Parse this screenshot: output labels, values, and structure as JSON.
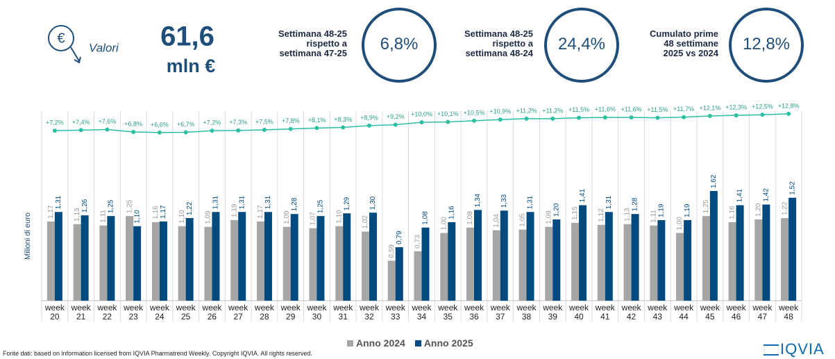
{
  "header": {
    "label": "Valori",
    "total": "61,6",
    "unit": "mln €",
    "kpis": [
      {
        "lines": [
          "Settimana 48-25",
          "rispetto a",
          "settimana 47-25"
        ],
        "value": "6,8%"
      },
      {
        "lines": [
          "Settimana 48-25",
          "rispetto a",
          "settimana 48-24"
        ],
        "value": "24,4%"
      },
      {
        "lines": [
          "Cumulato prime",
          "48 settimane",
          "2025 vs 2024"
        ],
        "value": "12,8%"
      }
    ]
  },
  "chart_data": {
    "type": "bar",
    "y_label": "Milioni di euro",
    "categories": [
      "week 20",
      "week 21",
      "week 22",
      "week 23",
      "week 24",
      "week 25",
      "week 26",
      "week 27",
      "week 28",
      "week 29",
      "week 30",
      "week 31",
      "week 32",
      "week 33",
      "week 34",
      "week 35",
      "week 36",
      "week 37",
      "week 38",
      "week 39",
      "week 40",
      "week 41",
      "week 42",
      "week 43",
      "week 44",
      "week 45",
      "week 46",
      "week 47",
      "week 48"
    ],
    "ylim": [
      0,
      2.8
    ],
    "y2lim": [
      -49,
      13.7
    ],
    "legend": "bottom",
    "series": [
      {
        "name": "Anno 2024",
        "color": "#a6a6a6",
        "values": [
          1.17,
          1.13,
          1.11,
          1.25,
          1.16,
          1.1,
          1.09,
          1.19,
          1.17,
          1.09,
          1.07,
          1.1,
          1.02,
          0.59,
          0.73,
          1.0,
          1.08,
          1.04,
          1.05,
          1.09,
          1.15,
          1.12,
          1.13,
          1.11,
          1.0,
          1.25,
          1.16,
          1.2,
          1.22
        ],
        "value_labels": [
          "1,17",
          "1,13",
          "1,11",
          "1,25",
          "1,16",
          "1,10",
          "1,09",
          "1,19",
          "1,17",
          "1,09",
          "1,07",
          "1,10",
          "1,02",
          "0,59",
          "0,73",
          "1,00",
          "1,08",
          "1,04",
          "1,05",
          "1,09",
          "1,15",
          "1,12",
          "1,13",
          "1,11",
          "1,00",
          "1,25",
          "1,16",
          "1,20",
          "1,22"
        ]
      },
      {
        "name": "Anno 2025",
        "color": "#004a80",
        "values": [
          1.31,
          1.26,
          1.25,
          1.1,
          1.17,
          1.22,
          1.31,
          1.31,
          1.31,
          1.28,
          1.25,
          1.29,
          1.3,
          0.79,
          1.08,
          1.16,
          1.34,
          1.33,
          1.31,
          1.2,
          1.41,
          1.31,
          1.28,
          1.19,
          1.19,
          1.62,
          1.41,
          1.42,
          1.52
        ],
        "value_labels": [
          "1,31",
          "1,26",
          "1,25",
          "1,10",
          "1,17",
          "1,22",
          "1,31",
          "1,31",
          "1,31",
          "1,28",
          "1,25",
          "1,29",
          "1,30",
          "0,79",
          "1,08",
          "1,16",
          "1,34",
          "1,33",
          "1,31",
          "1,20",
          "1,41",
          "1,31",
          "1,28",
          "1,19",
          "1,19",
          "1,62",
          "1,41",
          "1,42",
          "1,52"
        ]
      },
      {
        "type": "line",
        "axis": "y2",
        "color": "#2bbfa3",
        "values": [
          7.2,
          7.4,
          7.6,
          6.8,
          6.6,
          6.7,
          7.2,
          7.3,
          7.5,
          7.8,
          8.1,
          8.3,
          8.9,
          9.2,
          10.0,
          10.1,
          10.5,
          10.9,
          11.2,
          11.2,
          11.5,
          11.6,
          11.6,
          11.5,
          11.7,
          12.1,
          12.3,
          12.5,
          12.8
        ],
        "value_labels": [
          "+7,2%",
          "+7,4%",
          "+7,6%",
          "+6,8%",
          "+6,6%",
          "+6,7%",
          "+7,2%",
          "+7,3%",
          "+7,5%",
          "+7,8%",
          "+8,1%",
          "+8,3%",
          "+8,9%",
          "+9,2%",
          "+10,0%",
          "+10,1%",
          "+10,5%",
          "+10,9%",
          "+11,2%",
          "+11,2%",
          "+11,5%",
          "+11,6%",
          "+11,6%",
          "+11,5%",
          "+11,7%",
          "+12,1%",
          "+12,3%",
          "+12,5%",
          "+12,8%"
        ]
      }
    ]
  },
  "footer": {
    "source": "Fonte dati: based on information licensed from IQVIA Pharmatrend Weekly. Copyright IQVIA. All rights reserved.",
    "logo": "IQVIA"
  }
}
